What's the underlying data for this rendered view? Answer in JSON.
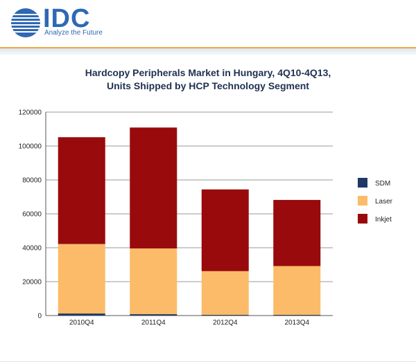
{
  "header": {
    "logo_text": "IDC",
    "tagline": "Analyze the Future"
  },
  "chart_data": {
    "type": "bar",
    "stacked": true,
    "title_line1": "Hardcopy Peripherals Market in Hungary, 4Q10-4Q13,",
    "title_line2": "Units Shipped by HCP Technology Segment",
    "categories": [
      "2010Q4",
      "2011Q4",
      "2012Q4",
      "2013Q4"
    ],
    "series": [
      {
        "name": "SDM",
        "color": "#1f3866",
        "values": [
          1200,
          800,
          400,
          400
        ]
      },
      {
        "name": "Laser",
        "color": "#fbbb68",
        "values": [
          41000,
          38800,
          25800,
          28800
        ]
      },
      {
        "name": "Inkjet",
        "color": "#990a0c",
        "values": [
          63000,
          71300,
          48200,
          39000
        ]
      }
    ],
    "ylim": [
      0,
      120000
    ],
    "yticks": [
      "0",
      "20000",
      "40000",
      "60000",
      "80000",
      "100000",
      "120000"
    ],
    "legend_position": "right",
    "grid": true
  }
}
